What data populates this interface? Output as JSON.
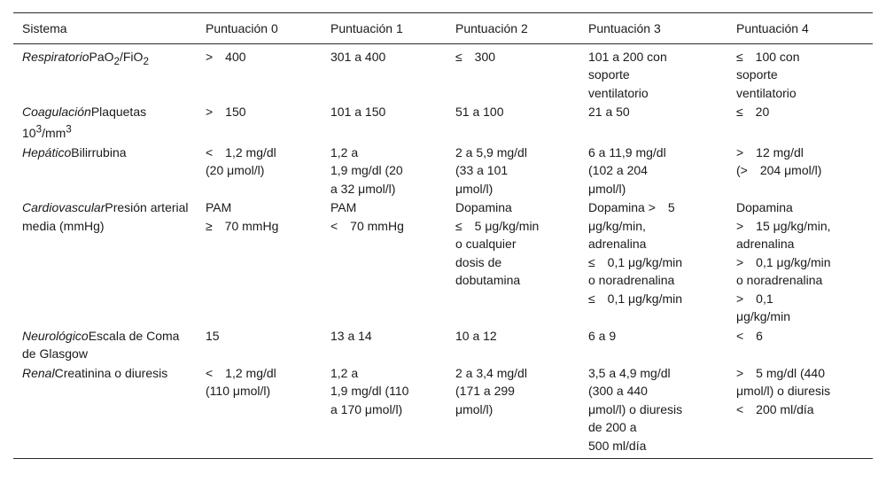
{
  "headers": [
    "Sistema",
    "Puntuación 0",
    "Puntuación 1",
    "Puntuación 2",
    "Puntuación 3",
    "Puntuación 4"
  ],
  "rows": [
    {
      "system": "Respiratorio",
      "parameter_html": "PaO<sub>2</sub>/FiO<sub>2</sub>",
      "parameter": "PaO2/FiO2",
      "scores": [
        [
          "> 400"
        ],
        [
          "301 a 400"
        ],
        [
          "≤ 300"
        ],
        [
          "101 a 200 con",
          "soporte",
          "ventilatorio"
        ],
        [
          "≤ 100 con",
          "soporte",
          "ventilatorio"
        ]
      ]
    },
    {
      "system": "Coagulación",
      "parameter_html": "Plaquetas 10<sup>3</sup>/mm<sup>3</sup>",
      "parameter": "Plaquetas 103/mm3",
      "scores": [
        [
          "> 150"
        ],
        [
          "101 a 150"
        ],
        [
          "51 a 100"
        ],
        [
          "21 a 50"
        ],
        [
          "≤ 20"
        ]
      ]
    },
    {
      "system": "Hepático",
      "parameter_html": "Bilirrubina",
      "parameter": "Bilirrubina",
      "scores": [
        [
          "< 1,2 mg/dl",
          "(20 μmol/l)"
        ],
        [
          "1,2 a",
          "1,9 mg/dl (20",
          "a 32 μmol/l)"
        ],
        [
          "2 a 5,9 mg/dl",
          "(33 a 101",
          "μmol/l)"
        ],
        [
          "6 a 11,9 mg/dl",
          "(102 a 204",
          "μmol/l)"
        ],
        [
          "> 12 mg/dl",
          "(> 204 μmol/l)"
        ]
      ]
    },
    {
      "system": "Cardiovascular",
      "parameter_html": "Presión arterial media (mmHg)",
      "parameter": "Presión arterial media (mmHg)",
      "scores": [
        [
          "PAM",
          "≥ 70 mmHg"
        ],
        [
          "PAM",
          "< 70 mmHg"
        ],
        [
          "Dopamina",
          "≤ 5 μg/kg/min",
          "o cualquier",
          "dosis de",
          "dobutamina"
        ],
        [
          "Dopamina > 5",
          "μg/kg/min,",
          "adrenalina",
          "≤ 0,1 μg/kg/min",
          "o noradrenalina",
          "≤ 0,1 μg/kg/min"
        ],
        [
          "Dopamina",
          "> 15 μg/kg/min,",
          "adrenalina",
          "> 0,1 μg/kg/min",
          "o noradrenalina",
          "> 0,1",
          "μg/kg/min"
        ]
      ]
    },
    {
      "system": "Neurológico",
      "parameter_html": "Escala de Coma de Glasgow",
      "parameter": "Escala de Coma de Glasgow",
      "scores": [
        [
          "15"
        ],
        [
          "13 a 14"
        ],
        [
          "10 a 12"
        ],
        [
          "6 a 9"
        ],
        [
          "< 6"
        ]
      ]
    },
    {
      "system": "Renal",
      "parameter_html": "Creatinina o diuresis",
      "parameter": "Creatinina o diuresis",
      "scores": [
        [
          "< 1,2 mg/dl",
          "(110 μmol/l)"
        ],
        [
          "1,2 a",
          "1,9 mg/dl (110",
          "a 170 μmol/l)"
        ],
        [
          "2 a 3,4 mg/dl",
          "(171 a 299",
          "μmol/l)"
        ],
        [
          "3,5 a 4,9 mg/dl",
          "(300 a 440",
          "μmol/l) o diuresis",
          "de 200 a",
          "500 ml/día"
        ],
        [
          "> 5 mg/dl (440",
          "μmol/l) o diuresis",
          "< 200 ml/día"
        ]
      ]
    }
  ]
}
